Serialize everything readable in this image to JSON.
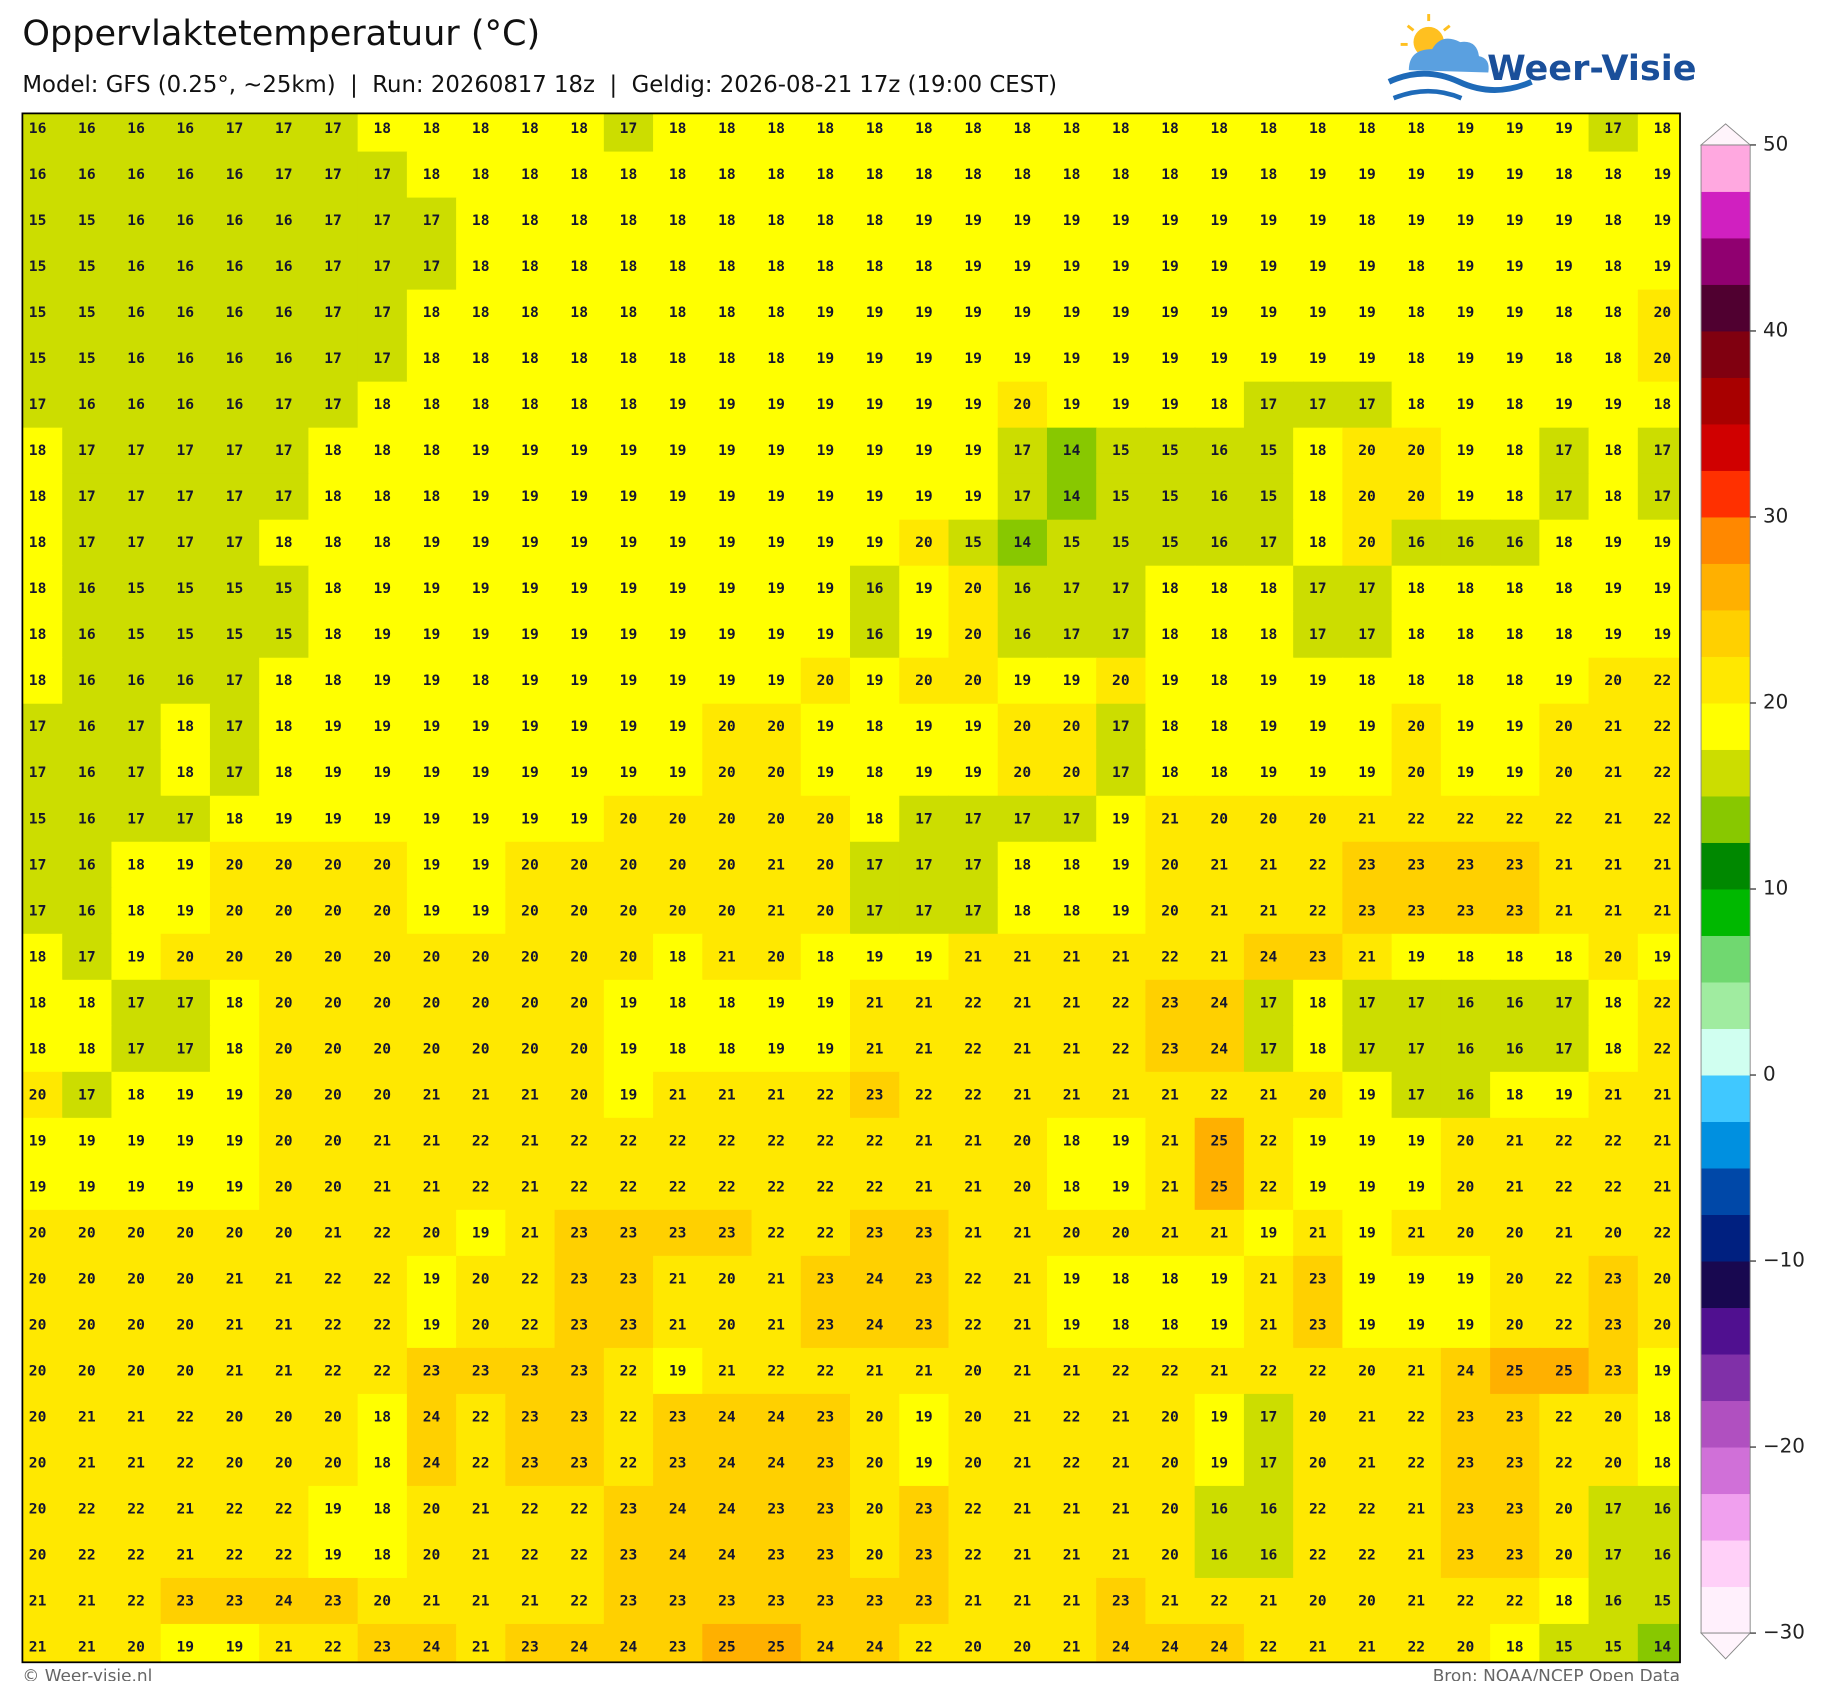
{
  "header": {
    "title": "Oppervlaktetemperatuur (°C)",
    "subtitle": "Model: GFS (0.25°, ~25km)  |  Run: 20260817 18z  |  Geldig: 2026-08-21 17z (19:00 CEST)"
  },
  "logo": "Weer-Visie",
  "grid": {
    "rows": [
      [
        16,
        16,
        16,
        16,
        17,
        17,
        17,
        18,
        18,
        18,
        18,
        18,
        17,
        18,
        18,
        18,
        18,
        18,
        18,
        18,
        18,
        18,
        18,
        18,
        18,
        18,
        18,
        18,
        18,
        19,
        19,
        19,
        17,
        18
      ],
      [
        16,
        16,
        16,
        16,
        16,
        17,
        17,
        17,
        18,
        18,
        18,
        18,
        18,
        18,
        18,
        18,
        18,
        18,
        18,
        18,
        18,
        18,
        18,
        18,
        19,
        18,
        19,
        19,
        19,
        19,
        19,
        18,
        18,
        19
      ],
      [
        15,
        15,
        16,
        16,
        16,
        16,
        17,
        17,
        17,
        18,
        18,
        18,
        18,
        18,
        18,
        18,
        18,
        18,
        19,
        19,
        19,
        19,
        19,
        19,
        19,
        19,
        19,
        18,
        19,
        19,
        19,
        19,
        18,
        19
      ],
      [
        15,
        15,
        16,
        16,
        16,
        16,
        17,
        17,
        17,
        18,
        18,
        18,
        18,
        18,
        18,
        18,
        18,
        18,
        18,
        19,
        19,
        19,
        19,
        19,
        19,
        19,
        19,
        19,
        18,
        19,
        19,
        19,
        18,
        19
      ],
      [
        15,
        15,
        16,
        16,
        16,
        16,
        17,
        17,
        18,
        18,
        18,
        18,
        18,
        18,
        18,
        18,
        19,
        19,
        19,
        19,
        19,
        19,
        19,
        19,
        19,
        19,
        19,
        19,
        18,
        19,
        19,
        18,
        18,
        20
      ],
      [
        15,
        15,
        16,
        16,
        16,
        16,
        17,
        17,
        18,
        18,
        18,
        18,
        18,
        18,
        18,
        18,
        19,
        19,
        19,
        19,
        19,
        19,
        19,
        19,
        19,
        19,
        19,
        19,
        18,
        19,
        19,
        18,
        18,
        20
      ],
      [
        17,
        16,
        16,
        16,
        16,
        17,
        17,
        18,
        18,
        18,
        18,
        18,
        18,
        19,
        19,
        19,
        19,
        19,
        19,
        19,
        20,
        19,
        19,
        19,
        18,
        17,
        17,
        17,
        18,
        19,
        18,
        19,
        19,
        18
      ],
      [
        18,
        17,
        17,
        17,
        17,
        17,
        18,
        18,
        18,
        19,
        19,
        19,
        19,
        19,
        19,
        19,
        19,
        19,
        19,
        19,
        17,
        14,
        15,
        15,
        16,
        15,
        18,
        20,
        20,
        19,
        18,
        17,
        18,
        17
      ],
      [
        18,
        17,
        17,
        17,
        17,
        17,
        18,
        18,
        18,
        19,
        19,
        19,
        19,
        19,
        19,
        19,
        19,
        19,
        19,
        19,
        17,
        14,
        15,
        15,
        16,
        15,
        18,
        20,
        20,
        19,
        18,
        17,
        18,
        17
      ],
      [
        18,
        17,
        17,
        17,
        17,
        18,
        18,
        18,
        19,
        19,
        19,
        19,
        19,
        19,
        19,
        19,
        19,
        19,
        20,
        15,
        14,
        15,
        15,
        15,
        16,
        17,
        18,
        20,
        16,
        16,
        16,
        18,
        19,
        19
      ],
      [
        18,
        16,
        15,
        15,
        15,
        15,
        18,
        19,
        19,
        19,
        19,
        19,
        19,
        19,
        19,
        19,
        19,
        16,
        19,
        20,
        16,
        17,
        17,
        18,
        18,
        18,
        17,
        17,
        18,
        18,
        18,
        18,
        19,
        19
      ],
      [
        18,
        16,
        15,
        15,
        15,
        15,
        18,
        19,
        19,
        19,
        19,
        19,
        19,
        19,
        19,
        19,
        19,
        16,
        19,
        20,
        16,
        17,
        17,
        18,
        18,
        18,
        17,
        17,
        18,
        18,
        18,
        18,
        19,
        19
      ],
      [
        18,
        16,
        16,
        16,
        17,
        18,
        18,
        19,
        19,
        18,
        19,
        19,
        19,
        19,
        19,
        19,
        20,
        19,
        20,
        20,
        19,
        19,
        20,
        19,
        18,
        19,
        19,
        18,
        18,
        18,
        18,
        19,
        20,
        22
      ],
      [
        17,
        16,
        17,
        18,
        17,
        18,
        19,
        19,
        19,
        19,
        19,
        19,
        19,
        19,
        20,
        20,
        19,
        18,
        19,
        19,
        20,
        20,
        17,
        18,
        18,
        19,
        19,
        19,
        20,
        19,
        19,
        20,
        21,
        22
      ],
      [
        17,
        16,
        17,
        18,
        17,
        18,
        19,
        19,
        19,
        19,
        19,
        19,
        19,
        19,
        20,
        20,
        19,
        18,
        19,
        19,
        20,
        20,
        17,
        18,
        18,
        19,
        19,
        19,
        20,
        19,
        19,
        20,
        21,
        22
      ],
      [
        15,
        16,
        17,
        17,
        18,
        19,
        19,
        19,
        19,
        19,
        19,
        19,
        20,
        20,
        20,
        20,
        20,
        18,
        17,
        17,
        17,
        17,
        19,
        21,
        20,
        20,
        20,
        21,
        22,
        22,
        22,
        22,
        21,
        22
      ],
      [
        17,
        16,
        18,
        19,
        20,
        20,
        20,
        20,
        19,
        19,
        20,
        20,
        20,
        20,
        20,
        21,
        20,
        17,
        17,
        17,
        18,
        18,
        19,
        20,
        21,
        21,
        22,
        23,
        23,
        23,
        23,
        21,
        21,
        21
      ],
      [
        17,
        16,
        18,
        19,
        20,
        20,
        20,
        20,
        19,
        19,
        20,
        20,
        20,
        20,
        20,
        21,
        20,
        17,
        17,
        17,
        18,
        18,
        19,
        20,
        21,
        21,
        22,
        23,
        23,
        23,
        23,
        21,
        21,
        21
      ],
      [
        18,
        17,
        19,
        20,
        20,
        20,
        20,
        20,
        20,
        20,
        20,
        20,
        20,
        18,
        21,
        20,
        18,
        19,
        19,
        21,
        21,
        21,
        21,
        22,
        21,
        24,
        23,
        21,
        19,
        18,
        18,
        18,
        20,
        19
      ],
      [
        18,
        18,
        17,
        17,
        18,
        20,
        20,
        20,
        20,
        20,
        20,
        20,
        19,
        18,
        18,
        19,
        19,
        21,
        21,
        22,
        21,
        21,
        22,
        23,
        24,
        17,
        18,
        17,
        17,
        16,
        16,
        17,
        18,
        22
      ],
      [
        18,
        18,
        17,
        17,
        18,
        20,
        20,
        20,
        20,
        20,
        20,
        20,
        19,
        18,
        18,
        19,
        19,
        21,
        21,
        22,
        21,
        21,
        22,
        23,
        24,
        17,
        18,
        17,
        17,
        16,
        16,
        17,
        18,
        22
      ],
      [
        20,
        17,
        18,
        19,
        19,
        20,
        20,
        20,
        21,
        21,
        21,
        20,
        19,
        21,
        21,
        21,
        22,
        23,
        22,
        22,
        21,
        21,
        21,
        21,
        22,
        21,
        20,
        19,
        17,
        16,
        18,
        19,
        21,
        21
      ],
      [
        19,
        19,
        19,
        19,
        19,
        20,
        20,
        21,
        21,
        22,
        21,
        22,
        22,
        22,
        22,
        22,
        22,
        22,
        21,
        21,
        20,
        18,
        19,
        21,
        25,
        22,
        19,
        19,
        19,
        20,
        21,
        22,
        22,
        21
      ],
      [
        19,
        19,
        19,
        19,
        19,
        20,
        20,
        21,
        21,
        22,
        21,
        22,
        22,
        22,
        22,
        22,
        22,
        22,
        21,
        21,
        20,
        18,
        19,
        21,
        25,
        22,
        19,
        19,
        19,
        20,
        21,
        22,
        22,
        21
      ],
      [
        20,
        20,
        20,
        20,
        20,
        20,
        21,
        22,
        20,
        19,
        21,
        23,
        23,
        23,
        23,
        22,
        22,
        23,
        23,
        21,
        21,
        20,
        20,
        21,
        21,
        19,
        21,
        19,
        21,
        20,
        20,
        21,
        20,
        22
      ],
      [
        20,
        20,
        20,
        20,
        21,
        21,
        22,
        22,
        19,
        20,
        22,
        23,
        23,
        21,
        20,
        21,
        23,
        24,
        23,
        22,
        21,
        19,
        18,
        18,
        19,
        21,
        23,
        19,
        19,
        19,
        20,
        22,
        23,
        20
      ],
      [
        20,
        20,
        20,
        20,
        21,
        21,
        22,
        22,
        19,
        20,
        22,
        23,
        23,
        21,
        20,
        21,
        23,
        24,
        23,
        22,
        21,
        19,
        18,
        18,
        19,
        21,
        23,
        19,
        19,
        19,
        20,
        22,
        23,
        20
      ],
      [
        20,
        20,
        20,
        20,
        21,
        21,
        22,
        22,
        23,
        23,
        23,
        23,
        22,
        19,
        21,
        22,
        22,
        21,
        21,
        20,
        21,
        21,
        22,
        22,
        21,
        22,
        22,
        20,
        21,
        24,
        25,
        25,
        23,
        19
      ],
      [
        20,
        21,
        21,
        22,
        20,
        20,
        20,
        18,
        24,
        22,
        23,
        23,
        22,
        23,
        24,
        24,
        23,
        20,
        19,
        20,
        21,
        22,
        21,
        20,
        19,
        17,
        20,
        21,
        22,
        23,
        23,
        22,
        20,
        18
      ],
      [
        20,
        21,
        21,
        22,
        20,
        20,
        20,
        18,
        24,
        22,
        23,
        23,
        22,
        23,
        24,
        24,
        23,
        20,
        19,
        20,
        21,
        22,
        21,
        20,
        19,
        17,
        20,
        21,
        22,
        23,
        23,
        22,
        20,
        18
      ],
      [
        20,
        22,
        22,
        21,
        22,
        22,
        19,
        18,
        20,
        21,
        22,
        22,
        23,
        24,
        24,
        23,
        23,
        20,
        23,
        22,
        21,
        21,
        21,
        20,
        16,
        16,
        22,
        22,
        21,
        23,
        23,
        20,
        17,
        16
      ],
      [
        20,
        22,
        22,
        21,
        22,
        22,
        19,
        18,
        20,
        21,
        22,
        22,
        23,
        24,
        24,
        23,
        23,
        20,
        23,
        22,
        21,
        21,
        21,
        20,
        16,
        16,
        22,
        22,
        21,
        23,
        23,
        20,
        17,
        16
      ],
      [
        21,
        21,
        22,
        23,
        23,
        24,
        23,
        20,
        21,
        21,
        21,
        22,
        23,
        23,
        23,
        23,
        23,
        23,
        23,
        21,
        21,
        21,
        23,
        21,
        22,
        21,
        20,
        20,
        21,
        22,
        22,
        18,
        16,
        15
      ],
      [
        21,
        21,
        20,
        19,
        19,
        21,
        22,
        23,
        24,
        21,
        23,
        24,
        24,
        23,
        25,
        25,
        24,
        24,
        22,
        20,
        20,
        21,
        24,
        24,
        24,
        22,
        21,
        21,
        22,
        20,
        18,
        15,
        15,
        14
      ]
    ]
  },
  "colorbar": {
    "lim": [
      -30,
      50
    ],
    "ticks": [
      50,
      40,
      30,
      20,
      10,
      0,
      {
        "value": -10,
        "label": "−10"
      },
      {
        "value": -20,
        "label": "−20"
      },
      {
        "value": -30,
        "label": "−30"
      }
    ],
    "colors": [
      "#fff0fc",
      "#ffd0f8",
      "#f0a0ee",
      "#d070d8",
      "#b050c0",
      "#8030a8",
      "#501090",
      "#180850",
      "#002080",
      "#0048a8",
      "#0090e0",
      "#40c8ff",
      "#d0fff0",
      "#a0eca0",
      "#70d870",
      "#00b800",
      "#008800",
      "#88c800",
      "#ccdd00",
      "#ffff00",
      "#ffe800",
      "#ffd000",
      "#ffb000",
      "#ff8800",
      "#ff3000",
      "#d00000",
      "#a80000",
      "#800010",
      "#500030",
      "#900070",
      "#d020c0",
      "#ffa8e0"
    ]
  },
  "footer": {
    "left": "© Weer-visie.nl",
    "right": "Bron: NOAA/NCEP Open Data"
  }
}
